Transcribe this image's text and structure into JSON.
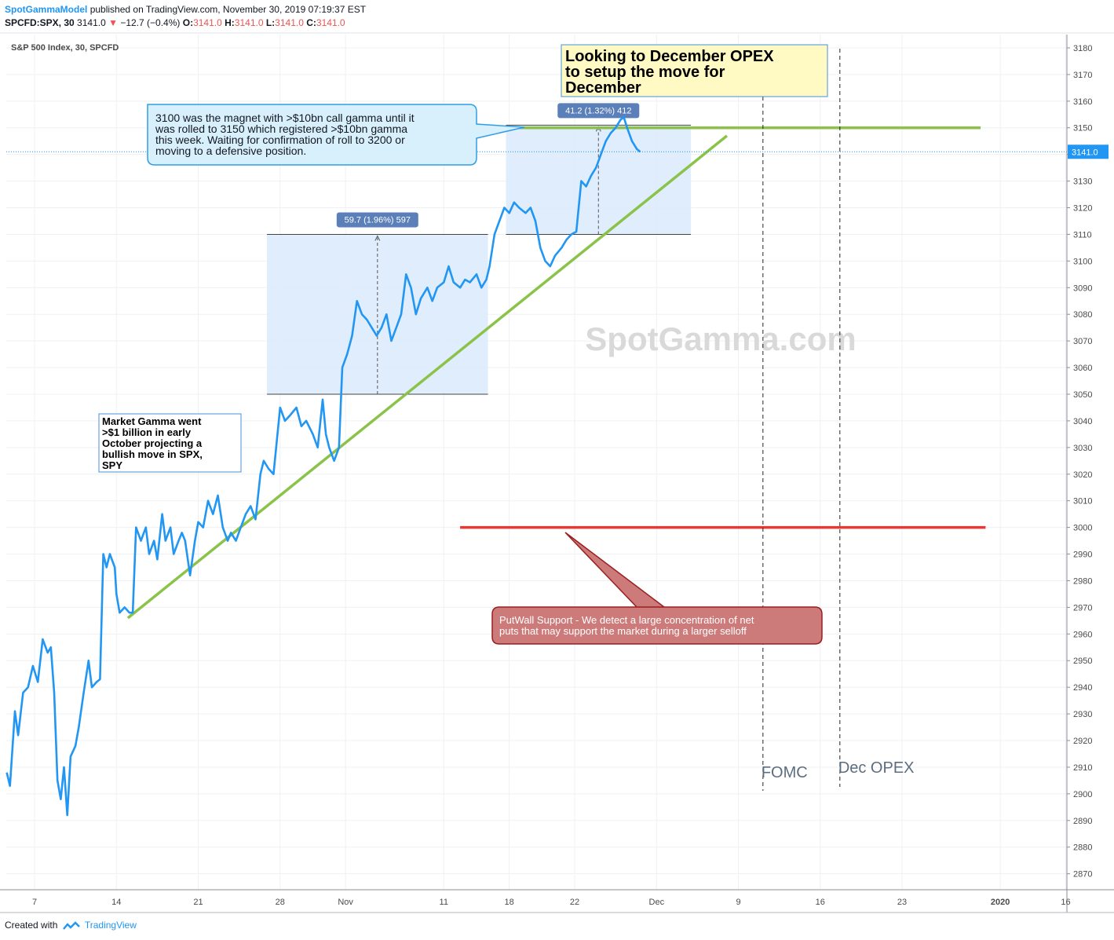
{
  "header": {
    "author": "SpotGammaModel",
    "published": "published on TradingView.com, November 30, 2019 07:19:37 EST",
    "symbol": "SPCFD:SPX, 30",
    "price": "3141.0",
    "change_arrow": "▼",
    "change": "−12.7 (−0.4%)",
    "o_label": "O:",
    "o_val": "3141.0",
    "h_label": "H:",
    "h_val": "3141.0",
    "l_label": "L:",
    "l_val": "3141.0",
    "c_label": "C:",
    "c_val": "3141.0"
  },
  "footer": {
    "created_with": "Created with",
    "brand": "TradingView"
  },
  "colors": {
    "price_line": "#2196f3",
    "trendline": "#8bc34a",
    "put_wall": "#e53935",
    "range_box": "#dbeafc",
    "grid": "#eef0f3",
    "watermark": "#d9d9d9"
  },
  "chart_data": {
    "type": "line",
    "title": "S&P 500 Index, 30, SPCFD",
    "watermark": "SpotGamma.com",
    "x_axis": {
      "ticks": [
        "7",
        "14",
        "21",
        "28",
        "Nov",
        "11",
        "18",
        "22",
        "Dec",
        "9",
        "16",
        "23",
        "2020",
        "16"
      ],
      "tick_index": [
        2.0,
        7.0,
        12.0,
        17.0,
        21.0,
        27.0,
        31.0,
        35.0,
        40.0,
        45.0,
        50.0,
        55.0,
        61.0,
        65.0
      ]
    },
    "y_axis": {
      "min": 2864,
      "max": 3185,
      "ticks": [
        2870,
        2880,
        2890,
        2900,
        2910,
        2920,
        2930,
        2940,
        2950,
        2960,
        2970,
        2980,
        2990,
        3000,
        3010,
        3020,
        3030,
        3040,
        3050,
        3060,
        3070,
        3080,
        3090,
        3100,
        3110,
        3120,
        3130,
        3140,
        3150,
        3160,
        3170,
        3180
      ]
    },
    "last_price_label": "3141.0",
    "series": [
      {
        "values": [
          [
            0.3,
            2908
          ],
          [
            0.5,
            2903
          ],
          [
            0.8,
            2931
          ],
          [
            1.0,
            2922
          ],
          [
            1.3,
            2938
          ],
          [
            1.6,
            2940
          ],
          [
            1.9,
            2948
          ],
          [
            2.2,
            2942
          ],
          [
            2.5,
            2958
          ],
          [
            2.8,
            2953
          ],
          [
            3.0,
            2955
          ],
          [
            3.2,
            2938
          ],
          [
            3.4,
            2905
          ],
          [
            3.6,
            2898
          ],
          [
            3.8,
            2910
          ],
          [
            4.0,
            2892
          ],
          [
            4.2,
            2914
          ],
          [
            4.5,
            2918
          ],
          [
            4.7,
            2925
          ],
          [
            5.0,
            2938
          ],
          [
            5.3,
            2950
          ],
          [
            5.5,
            2940
          ],
          [
            5.8,
            2942
          ],
          [
            6.0,
            2943
          ],
          [
            6.2,
            2990
          ],
          [
            6.4,
            2985
          ],
          [
            6.6,
            2990
          ],
          [
            6.9,
            2985
          ],
          [
            7.0,
            2975
          ],
          [
            7.2,
            2968
          ],
          [
            7.5,
            2970
          ],
          [
            7.8,
            2968
          ],
          [
            8.0,
            2968
          ],
          [
            8.2,
            3000
          ],
          [
            8.5,
            2995
          ],
          [
            8.8,
            3000
          ],
          [
            9.0,
            2990
          ],
          [
            9.3,
            2995
          ],
          [
            9.5,
            2988
          ],
          [
            9.8,
            3005
          ],
          [
            10.0,
            2995
          ],
          [
            10.3,
            3000
          ],
          [
            10.5,
            2990
          ],
          [
            10.8,
            2995
          ],
          [
            11.0,
            2998
          ],
          [
            11.2,
            2995
          ],
          [
            11.5,
            2982
          ],
          [
            11.8,
            2995
          ],
          [
            12.0,
            3002
          ],
          [
            12.3,
            3000
          ],
          [
            12.6,
            3010
          ],
          [
            12.9,
            3005
          ],
          [
            13.2,
            3012
          ],
          [
            13.5,
            3000
          ],
          [
            13.8,
            2995
          ],
          [
            14.0,
            2998
          ],
          [
            14.3,
            2995
          ],
          [
            14.6,
            3000
          ],
          [
            14.9,
            3005
          ],
          [
            15.2,
            3008
          ],
          [
            15.5,
            3003
          ],
          [
            15.8,
            3020
          ],
          [
            16.0,
            3025
          ],
          [
            16.3,
            3022
          ],
          [
            16.6,
            3020
          ],
          [
            17.0,
            3045
          ],
          [
            17.3,
            3040
          ],
          [
            17.6,
            3042
          ],
          [
            18.0,
            3045
          ],
          [
            18.3,
            3038
          ],
          [
            18.6,
            3040
          ],
          [
            19.0,
            3035
          ],
          [
            19.3,
            3030
          ],
          [
            19.6,
            3048
          ],
          [
            19.8,
            3035
          ],
          [
            20.0,
            3030
          ],
          [
            20.3,
            3025
          ],
          [
            20.6,
            3030
          ],
          [
            20.8,
            3060
          ],
          [
            21.1,
            3065
          ],
          [
            21.4,
            3072
          ],
          [
            21.7,
            3085
          ],
          [
            22.0,
            3080
          ],
          [
            22.3,
            3078
          ],
          [
            22.6,
            3075
          ],
          [
            22.9,
            3072
          ],
          [
            23.2,
            3075
          ],
          [
            23.5,
            3080
          ],
          [
            23.8,
            3070
          ],
          [
            24.1,
            3075
          ],
          [
            24.4,
            3080
          ],
          [
            24.7,
            3095
          ],
          [
            25.0,
            3090
          ],
          [
            25.3,
            3080
          ],
          [
            25.6,
            3086
          ],
          [
            26.0,
            3090
          ],
          [
            26.3,
            3085
          ],
          [
            26.6,
            3090
          ],
          [
            27.0,
            3092
          ],
          [
            27.3,
            3098
          ],
          [
            27.6,
            3092
          ],
          [
            28.0,
            3090
          ],
          [
            28.3,
            3093
          ],
          [
            28.6,
            3092
          ],
          [
            29.0,
            3095
          ],
          [
            29.3,
            3090
          ],
          [
            29.6,
            3093
          ],
          [
            29.8,
            3098
          ],
          [
            30.1,
            3110
          ],
          [
            30.4,
            3115
          ],
          [
            30.7,
            3120
          ],
          [
            31.0,
            3118
          ],
          [
            31.3,
            3122
          ],
          [
            31.6,
            3120
          ],
          [
            32.0,
            3118
          ],
          [
            32.3,
            3120
          ],
          [
            32.6,
            3115
          ],
          [
            32.9,
            3105
          ],
          [
            33.2,
            3100
          ],
          [
            33.5,
            3098
          ],
          [
            33.8,
            3102
          ],
          [
            34.2,
            3105
          ],
          [
            34.5,
            3108
          ],
          [
            34.8,
            3110
          ],
          [
            35.1,
            3111
          ],
          [
            35.4,
            3130
          ],
          [
            35.7,
            3128
          ],
          [
            36.0,
            3132
          ],
          [
            36.3,
            3135
          ],
          [
            36.6,
            3140
          ],
          [
            36.9,
            3145
          ],
          [
            37.2,
            3148
          ],
          [
            37.5,
            3150
          ],
          [
            37.8,
            3153
          ],
          [
            38.0,
            3154
          ],
          [
            38.2,
            3150
          ],
          [
            38.5,
            3145
          ],
          [
            38.8,
            3142
          ],
          [
            39.0,
            3141
          ]
        ]
      }
    ],
    "shapes": [
      {
        "type": "trendline",
        "from": [
          7.7,
          2966
        ],
        "to": [
          44.3,
          3147
        ]
      },
      {
        "type": "horizontal",
        "name": "call gamma level",
        "from": [
          31.0,
          3150
        ],
        "to": [
          59.8,
          3150
        ]
      },
      {
        "type": "horizontal",
        "name": "PutWall support",
        "from": [
          28.0,
          3000
        ],
        "to": [
          60.1,
          3000
        ]
      },
      {
        "type": "range",
        "from": [
          16.2,
          3050
        ],
        "to": [
          29.7,
          3110
        ],
        "label": "59.7 (1.96%) 597"
      },
      {
        "type": "range",
        "from": [
          30.8,
          3110
        ],
        "to": [
          42.1,
          3151
        ],
        "label": "41.2 (1.32%) 412"
      },
      {
        "type": "vline",
        "x": 46.5,
        "label": "FOMC"
      },
      {
        "type": "vline",
        "x": 51.2,
        "label": "Dec OPEX"
      }
    ],
    "annotations": [
      {
        "name": "opex-note",
        "text": "Looking to December OPEX to setup the move for December"
      },
      {
        "name": "gamma-callout",
        "text": "3100 was the magnet with >$10bn call gamma until it was rolled to 3150 which registered >$10bn gamma this week. Waiting for confirmation of roll to 3200 or moving to a defensive position."
      },
      {
        "name": "market-gamma-note",
        "text": "Market Gamma went >$1 billion in early October projecting a bullish move in SPX, SPY"
      },
      {
        "name": "putwall-callout",
        "text": "PutWall Support - We detect a large concentration of net puts that may support the market during a larger selloff"
      }
    ]
  }
}
